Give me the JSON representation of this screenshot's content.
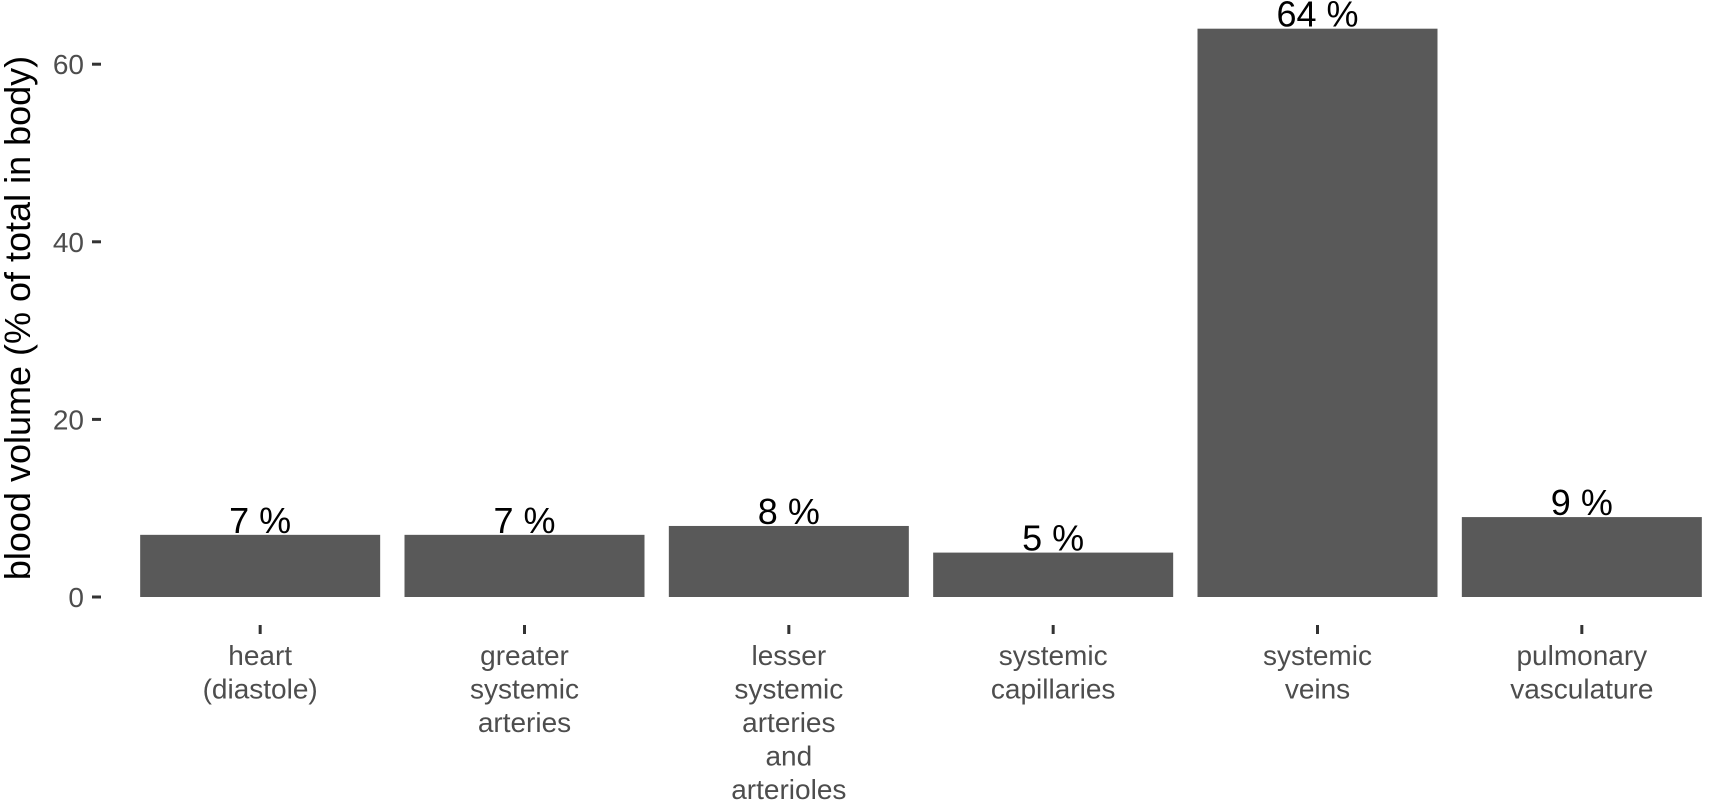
{
  "chart_data": {
    "type": "bar",
    "categories": [
      [
        "heart",
        "(diastole)"
      ],
      [
        "greater",
        "systemic",
        "arteries"
      ],
      [
        "lesser",
        "systemic",
        "arteries",
        "and",
        "arterioles"
      ],
      [
        "systemic",
        "capillaries"
      ],
      [
        "systemic",
        "veins"
      ],
      [
        "pulmonary",
        "vasculature"
      ]
    ],
    "values": [
      7,
      7,
      8,
      5,
      64,
      9
    ],
    "data_labels": [
      "7 %",
      "7 %",
      "8 %",
      "5 %",
      "64 %",
      "9 %"
    ],
    "title": "",
    "xlabel": "",
    "ylabel": "blood volume (% of total in body)",
    "ylim": [
      0,
      64
    ],
    "yticks": [
      0,
      20,
      40,
      60
    ],
    "grid": false,
    "legend": "none",
    "bar_color": "#595959"
  }
}
